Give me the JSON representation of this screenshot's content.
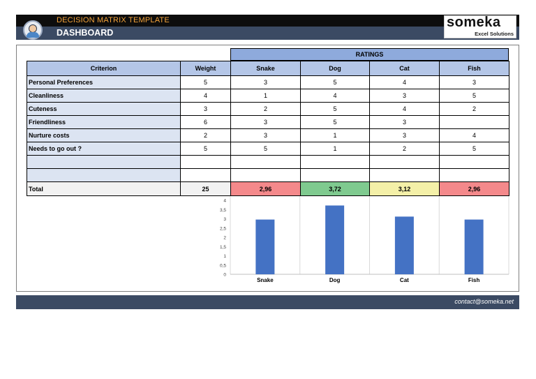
{
  "header": {
    "title": "DECISION MATRIX TEMPLATE",
    "subtitle": "DASHBOARD",
    "brand_name": "someka",
    "brand_tagline": "Excel Solutions"
  },
  "table": {
    "ratings_title": "RATINGS",
    "criterion_header": "Criterion",
    "weight_header": "Weight",
    "options": [
      "Snake",
      "Dog",
      "Cat",
      "Fish"
    ],
    "rows": [
      {
        "criterion": "Personal Preferences",
        "weight": "5",
        "ratings": [
          "3",
          "5",
          "4",
          "3"
        ]
      },
      {
        "criterion": "Cleanliness",
        "weight": "4",
        "ratings": [
          "1",
          "4",
          "3",
          "5"
        ]
      },
      {
        "criterion": "Cuteness",
        "weight": "3",
        "ratings": [
          "2",
          "5",
          "4",
          "2"
        ]
      },
      {
        "criterion": "Friendliness",
        "weight": "6",
        "ratings": [
          "3",
          "5",
          "3",
          ""
        ]
      },
      {
        "criterion": "Nurture costs",
        "weight": "2",
        "ratings": [
          "3",
          "1",
          "3",
          "4"
        ]
      },
      {
        "criterion": "Needs to go out ?",
        "weight": "5",
        "ratings": [
          "5",
          "1",
          "2",
          "5"
        ]
      },
      {
        "criterion": "",
        "weight": "",
        "ratings": [
          "",
          "",
          "",
          ""
        ]
      },
      {
        "criterion": "",
        "weight": "",
        "ratings": [
          "",
          "",
          "",
          ""
        ]
      }
    ],
    "total_label": "Total",
    "total_weight": "25",
    "total_scores": [
      "2,96",
      "3,72",
      "3,12",
      "2,96"
    ],
    "total_colors": [
      "#f4898b",
      "#7fca8f",
      "#f4f0a8",
      "#f4898b"
    ]
  },
  "chart_data": {
    "type": "bar",
    "categories": [
      "Snake",
      "Dog",
      "Cat",
      "Fish"
    ],
    "values": [
      2.96,
      3.72,
      3.12,
      2.96
    ],
    "ylim": [
      0,
      4
    ],
    "yticks": [
      "0",
      "0,5",
      "1",
      "1,5",
      "2",
      "2,5",
      "3",
      "3,5",
      "4"
    ],
    "bar_color": "#4472c4",
    "grid": "vertical separators only",
    "title": "",
    "xlabel": "",
    "ylabel": ""
  },
  "footer": {
    "contact": "contact@someka.net"
  }
}
